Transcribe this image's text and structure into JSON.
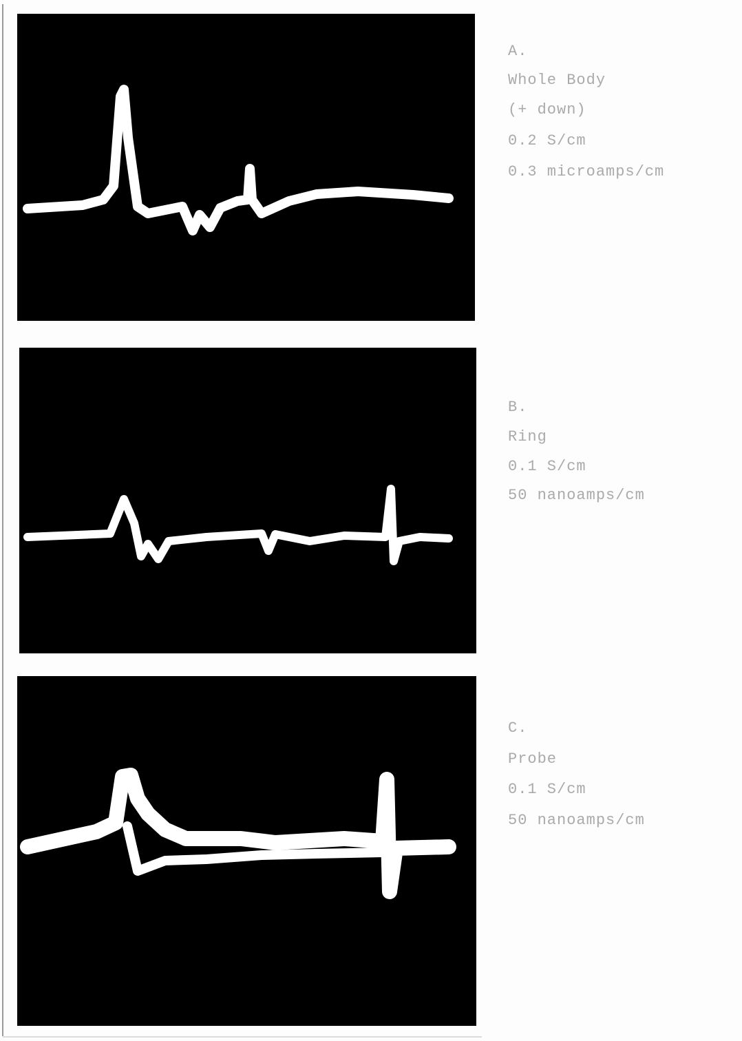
{
  "panels": [
    {
      "letter": "A.",
      "lines": [
        "Whole Body",
        "(+ down)",
        "0.2 S/cm",
        "0.3 microamps/cm"
      ]
    },
    {
      "letter": "B.",
      "lines": [
        "Ring",
        "0.1 S/cm",
        "50 nanoamps/cm"
      ]
    },
    {
      "letter": "C.",
      "lines": [
        "Probe",
        "0.1 S/cm",
        "50 nanoamps/cm"
      ]
    }
  ]
}
